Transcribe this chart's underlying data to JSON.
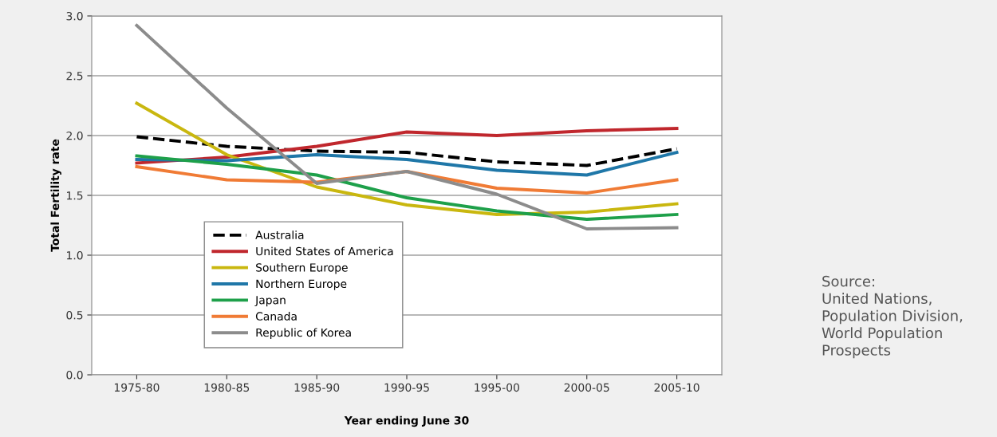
{
  "chart_data": {
    "type": "line",
    "xlabel": "Year ending June 30",
    "ylabel": "Total Fertility rate",
    "categories": [
      "1975-80",
      "1980-85",
      "1985-90",
      "1990-95",
      "1995-00",
      "2000-05",
      "2005-10"
    ],
    "series": [
      {
        "name": "Australia",
        "color": "#000000",
        "line_style": "dashed",
        "values": [
          1.99,
          1.91,
          1.87,
          1.86,
          1.78,
          1.75,
          1.89
        ]
      },
      {
        "name": "United States of America",
        "color": "#c0272d",
        "values": [
          1.77,
          1.82,
          1.91,
          2.03,
          2.0,
          2.04,
          2.06
        ]
      },
      {
        "name": "Southern Europe",
        "color": "#c9b70f",
        "values": [
          2.27,
          1.84,
          1.57,
          1.42,
          1.34,
          1.36,
          1.43
        ]
      },
      {
        "name": "Northern Europe",
        "color": "#1f77a8",
        "values": [
          1.8,
          1.79,
          1.84,
          1.8,
          1.71,
          1.67,
          1.86
        ]
      },
      {
        "name": "Japan",
        "color": "#1ea04a",
        "values": [
          1.83,
          1.76,
          1.67,
          1.48,
          1.37,
          1.3,
          1.34
        ]
      },
      {
        "name": "Canada",
        "color": "#f07b35",
        "values": [
          1.74,
          1.63,
          1.61,
          1.7,
          1.56,
          1.52,
          1.63
        ]
      },
      {
        "name": "Republic of Korea",
        "color": "#8c8c8c",
        "values": [
          2.92,
          2.23,
          1.6,
          1.7,
          1.51,
          1.22,
          1.23
        ]
      }
    ],
    "ylim": [
      0,
      3
    ],
    "yticks": [
      {
        "value": 0,
        "label": "0.0"
      },
      {
        "value": 0.5,
        "label": "0.5"
      },
      {
        "value": 1,
        "label": "1.0"
      },
      {
        "value": 1.5,
        "label": "1.5"
      },
      {
        "value": 2,
        "label": "2.0"
      },
      {
        "value": 2.5,
        "label": "2.5"
      },
      {
        "value": 3,
        "label": "3.0"
      }
    ],
    "grid": "y",
    "legend": "bottom left",
    "marker": "none",
    "line_style": "solid",
    "annotations": [
      "Source:\nUnited Nations,\nPopulation Division,\nWorld Population\nProspects"
    ]
  }
}
